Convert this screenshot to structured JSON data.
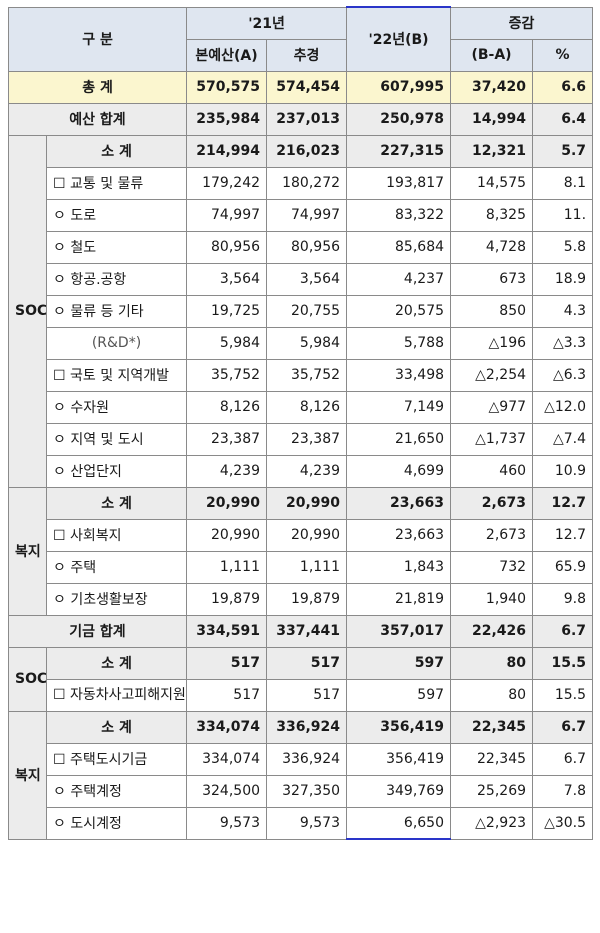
{
  "headers": {
    "division": "구 분",
    "y21": "'21년",
    "original": "본예산(A)",
    "supplementary": "추경",
    "y22": "'22년(B)",
    "change": "증감",
    "diff": "(B-A)",
    "pct": "%"
  },
  "sections": {
    "soc_budget": "SOC",
    "welfare_budget": "복지",
    "soc_fund": "SOC",
    "welfare_fund": "복지"
  },
  "rows": [
    {
      "label": "총 계",
      "a": "570,575",
      "b": "574,454",
      "c": "607,995",
      "d": "37,420",
      "e": "6.6"
    },
    {
      "label": "예산 합계",
      "a": "235,984",
      "b": "237,013",
      "c": "250,978",
      "d": "14,994",
      "e": "6.4"
    },
    {
      "label": "소 계",
      "a": "214,994",
      "b": "216,023",
      "c": "227,315",
      "d": "12,321",
      "e": "5.7"
    },
    {
      "label": "☐ 교통 및 물류",
      "a": "179,242",
      "b": "180,272",
      "c": "193,817",
      "d": "14,575",
      "e": "8.1"
    },
    {
      "label": "ㅇ 도로",
      "a": "74,997",
      "b": "74,997",
      "c": "83,322",
      "d": "8,325",
      "e": "11."
    },
    {
      "label": "ㅇ 철도",
      "a": "80,956",
      "b": "80,956",
      "c": "85,684",
      "d": "4,728",
      "e": "5.8"
    },
    {
      "label": "ㅇ 항공.공항",
      "a": "3,564",
      "b": "3,564",
      "c": "4,237",
      "d": "673",
      "e": "18.9"
    },
    {
      "label": "ㅇ 물류 등 기타",
      "a": "19,725",
      "b": "20,755",
      "c": "20,575",
      "d": "850",
      "e": "4.3"
    },
    {
      "label": "(R&D*)",
      "a": "5,984",
      "b": "5,984",
      "c": "5,788",
      "d": "△196",
      "e": "△3.3"
    },
    {
      "label": "☐ 국토 및 지역개발",
      "a": "35,752",
      "b": "35,752",
      "c": "33,498",
      "d": "△2,254",
      "e": "△6.3"
    },
    {
      "label": "ㅇ 수자원",
      "a": "8,126",
      "b": "8,126",
      "c": "7,149",
      "d": "△977",
      "e": "△12.0"
    },
    {
      "label": "ㅇ 지역 및 도시",
      "a": "23,387",
      "b": "23,387",
      "c": "21,650",
      "d": "△1,737",
      "e": "△7.4"
    },
    {
      "label": "ㅇ 산업단지",
      "a": "4,239",
      "b": "4,239",
      "c": "4,699",
      "d": "460",
      "e": "10.9"
    },
    {
      "label": "소 계",
      "a": "20,990",
      "b": "20,990",
      "c": "23,663",
      "d": "2,673",
      "e": "12.7"
    },
    {
      "label": "☐ 사회복지",
      "a": "20,990",
      "b": "20,990",
      "c": "23,663",
      "d": "2,673",
      "e": "12.7"
    },
    {
      "label": "ㅇ 주택",
      "a": "1,111",
      "b": "1,111",
      "c": "1,843",
      "d": "732",
      "e": "65.9"
    },
    {
      "label": "ㅇ 기초생활보장",
      "a": "19,879",
      "b": "19,879",
      "c": "21,819",
      "d": "1,940",
      "e": "9.8"
    },
    {
      "label": "기금 합계",
      "a": "334,591",
      "b": "337,441",
      "c": "357,017",
      "d": "22,426",
      "e": "6.7"
    },
    {
      "label": "소 계",
      "a": "517",
      "b": "517",
      "c": "597",
      "d": "80",
      "e": "15.5"
    },
    {
      "label": "☐ 자동차사고피해지원기금",
      "a": "517",
      "b": "517",
      "c": "597",
      "d": "80",
      "e": "15.5"
    },
    {
      "label": "소 계",
      "a": "334,074",
      "b": "336,924",
      "c": "356,419",
      "d": "22,345",
      "e": "6.7"
    },
    {
      "label": "☐ 주택도시기금",
      "a": "334,074",
      "b": "336,924",
      "c": "356,419",
      "d": "22,345",
      "e": "6.7"
    },
    {
      "label": "ㅇ 주택계정",
      "a": "324,500",
      "b": "327,350",
      "c": "349,769",
      "d": "25,269",
      "e": "7.8"
    },
    {
      "label": "ㅇ 도시계정",
      "a": "9,573",
      "b": "9,573",
      "c": "6,650",
      "d": "△2,923",
      "e": "△30.5"
    }
  ]
}
